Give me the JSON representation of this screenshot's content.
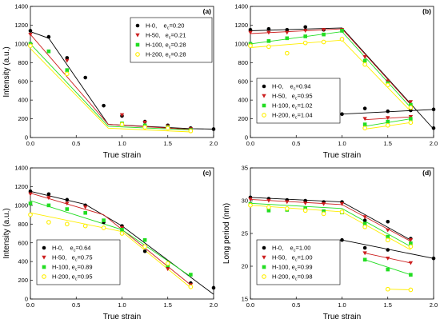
{
  "colors": {
    "H-0": "#000000",
    "H-50": "#cc1f1f",
    "H-100": "#22dd22",
    "H-200": "#ffee00"
  },
  "chart_data": [
    {
      "type": "scatter",
      "panel_label": "(a)",
      "xlabel": "True strain",
      "ylabel": "Intensity (a.u.)",
      "xlim": [
        0.0,
        2.0
      ],
      "ylim": [
        0,
        1400
      ],
      "xticks": [
        "0.0",
        "0.5",
        "1.0",
        "1.5",
        "2.0"
      ],
      "yticks": [
        "0",
        "200",
        "400",
        "600",
        "800",
        "1000",
        "1200",
        "1400"
      ],
      "grid": false,
      "legend_position": "top-right",
      "series": [
        {
          "name": "H-0",
          "legend_label": "H-0,    e",
          "legend_sub": "c",
          "legend_value": "=0.20",
          "marker": "circle",
          "x": [
            0.0,
            0.2,
            0.4,
            0.6,
            0.8,
            1.0,
            1.25,
            1.5,
            1.75,
            2.0
          ],
          "y": [
            1140,
            1075,
            850,
            640,
            340,
            230,
            170,
            130,
            100,
            90
          ],
          "fit": [
            [
              0.0,
              1130
            ],
            [
              0.2,
              1060
            ],
            [
              0.85,
              140
            ],
            [
              1.75,
              95
            ],
            [
              2.0,
              90
            ]
          ]
        },
        {
          "name": "H-50",
          "legend_label": "H-50,   e",
          "legend_sub": "c",
          "legend_value": "=0.21",
          "marker": "triangle-down",
          "x": [
            0.0,
            0.4,
            1.0,
            1.25,
            1.5,
            1.75
          ],
          "y": [
            1100,
            820,
            240,
            160,
            120,
            90
          ],
          "fit": [
            [
              0.0,
              1100
            ],
            [
              0.85,
              140
            ],
            [
              1.75,
              85
            ]
          ]
        },
        {
          "name": "H-100",
          "legend_label": "H-100, e",
          "legend_sub": "c",
          "legend_value": "=0.28",
          "marker": "square",
          "x": [
            0.0,
            0.2,
            0.4,
            1.0,
            1.25,
            1.5,
            1.75
          ],
          "y": [
            1000,
            920,
            720,
            150,
            130,
            110,
            80
          ],
          "fit": [
            [
              0.0,
              1000
            ],
            [
              0.85,
              120
            ],
            [
              1.75,
              80
            ]
          ]
        },
        {
          "name": "H-200",
          "legend_label": "H-200, e",
          "legend_sub": "c",
          "legend_value": "=0.28",
          "marker": "circle-open",
          "x": [
            0.0,
            0.4,
            1.0,
            1.25,
            1.5,
            1.75
          ],
          "y": [
            980,
            680,
            140,
            110,
            100,
            70
          ],
          "fit": [
            [
              0.0,
              950
            ],
            [
              0.85,
              100
            ],
            [
              1.75,
              60
            ]
          ]
        }
      ]
    },
    {
      "type": "scatter",
      "panel_label": "(b)",
      "xlabel": "True strain",
      "ylabel": "",
      "xlim": [
        0.0,
        2.0
      ],
      "ylim": [
        0,
        1400
      ],
      "xticks": [
        "0.0",
        "0.5",
        "1.0",
        "1.5",
        "2.0"
      ],
      "yticks": [
        "0",
        "200",
        "400",
        "600",
        "800",
        "1000",
        "1200",
        "1400"
      ],
      "grid": false,
      "legend_position": "bottom-left",
      "series": [
        {
          "name": "H-0",
          "legend_label": "H-0,    e",
          "legend_sub": "c",
          "legend_value": "=0.94",
          "marker": "circle",
          "x": [
            0.0,
            0.2,
            0.4,
            0.6,
            0.8,
            1.0,
            1.25,
            1.5,
            1.75,
            2.0,
            1.0,
            1.25,
            1.5,
            1.75,
            2.0
          ],
          "y": [
            1150,
            1160,
            1150,
            1180,
            1150,
            1150,
            820,
            590,
            330,
            100,
            250,
            310,
            280,
            290,
            300
          ],
          "fit": [
            [
              0.0,
              1140
            ],
            [
              1.0,
              1170
            ],
            [
              2.0,
              90
            ]
          ],
          "fit2": [
            [
              1.0,
              250
            ],
            [
              2.0,
              300
            ]
          ]
        },
        {
          "name": "H-50",
          "legend_label": "H-50,   e",
          "legend_sub": "c",
          "legend_value": "=0.95",
          "marker": "triangle-down",
          "x": [
            0.0,
            0.2,
            0.4,
            0.6,
            0.8,
            1.0,
            1.25,
            1.5,
            1.75,
            1.25,
            1.5,
            1.75
          ],
          "y": [
            1120,
            1120,
            1120,
            1140,
            1150,
            1150,
            860,
            600,
            380,
            200,
            210,
            220
          ],
          "fit": [
            [
              0.0,
              1110
            ],
            [
              1.0,
              1160
            ],
            [
              1.75,
              350
            ]
          ],
          "fit2": [
            [
              1.25,
              190
            ],
            [
              1.75,
              220
            ]
          ]
        },
        {
          "name": "H-100",
          "legend_label": "H-100, e",
          "legend_sub": "c",
          "legend_value": "=1.02",
          "marker": "square",
          "x": [
            0.0,
            0.2,
            0.4,
            0.6,
            0.8,
            1.0,
            1.25,
            1.5,
            1.75,
            1.25,
            1.5,
            1.75
          ],
          "y": [
            1000,
            1030,
            1060,
            1080,
            1100,
            1140,
            820,
            580,
            350,
            140,
            170,
            200
          ],
          "fit": [
            [
              0.0,
              1000
            ],
            [
              1.0,
              1130
            ],
            [
              1.75,
              320
            ]
          ],
          "fit2": [
            [
              1.25,
              120
            ],
            [
              1.75,
              200
            ]
          ]
        },
        {
          "name": "H-200",
          "legend_label": "H-200, e",
          "legend_sub": "c",
          "legend_value": "=1.04",
          "marker": "circle-open",
          "x": [
            0.0,
            0.2,
            0.4,
            0.6,
            0.8,
            1.0,
            1.25,
            1.5,
            1.75,
            1.25,
            1.5,
            1.75
          ],
          "y": [
            980,
            970,
            900,
            1010,
            1020,
            1050,
            780,
            560,
            320,
            100,
            130,
            160
          ],
          "fit": [
            [
              0.0,
              960
            ],
            [
              1.0,
              1040
            ],
            [
              1.75,
              280
            ]
          ],
          "fit2": [
            [
              1.25,
              90
            ],
            [
              1.75,
              160
            ]
          ]
        }
      ]
    },
    {
      "type": "scatter",
      "panel_label": "(c)",
      "xlabel": "True strain",
      "ylabel": "Intensity (a.u.)",
      "xlim": [
        0.0,
        2.0
      ],
      "ylim": [
        0,
        1400
      ],
      "xticks": [
        "0.0",
        "0.5",
        "1.0",
        "1.5",
        "2.0"
      ],
      "yticks": [
        "0",
        "200",
        "400",
        "600",
        "800",
        "1000",
        "1200",
        "1400"
      ],
      "grid": false,
      "legend_position": "bottom-left",
      "series": [
        {
          "name": "H-0",
          "legend_label": "H-0,    e",
          "legend_sub": "c",
          "legend_value": "=0.64",
          "marker": "circle",
          "x": [
            0.0,
            0.2,
            0.4,
            0.6,
            0.8,
            1.0,
            1.25,
            1.5,
            1.75,
            2.0
          ],
          "y": [
            1150,
            1120,
            1060,
            1000,
            820,
            780,
            510,
            350,
            170,
            120
          ],
          "fit": [
            [
              0.0,
              1150
            ],
            [
              0.6,
              1010
            ],
            [
              1.0,
              780
            ],
            [
              2.0,
              50
            ]
          ]
        },
        {
          "name": "H-50",
          "legend_label": "H-50,   e",
          "legend_sub": "c",
          "legend_value": "=0.75",
          "marker": "triangle-down",
          "x": [
            0.0,
            0.2,
            0.4,
            0.6,
            1.0,
            1.25,
            1.5,
            1.75
          ],
          "y": [
            1120,
            1080,
            1020,
            980,
            760,
            560,
            320,
            150
          ],
          "fit": [
            [
              0.0,
              1130
            ],
            [
              0.8,
              900
            ],
            [
              1.75,
              150
            ]
          ]
        },
        {
          "name": "H-100",
          "legend_label": "H-100, e",
          "legend_sub": "c",
          "legend_value": "=0.89",
          "marker": "square",
          "x": [
            0.0,
            0.2,
            0.4,
            0.6,
            0.8,
            1.0,
            1.25,
            1.5,
            1.75
          ],
          "y": [
            1020,
            1000,
            960,
            920,
            840,
            740,
            630,
            360,
            260
          ],
          "fit": [
            [
              0.0,
              1050
            ],
            [
              1.0,
              740
            ],
            [
              1.75,
              240
            ]
          ]
        },
        {
          "name": "H-200",
          "legend_label": "H-200, e",
          "legend_sub": "c",
          "legend_value": "=0.95",
          "marker": "circle-open",
          "x": [
            0.0,
            0.2,
            0.4,
            0.6,
            0.8,
            1.0,
            1.25,
            1.5,
            1.75
          ],
          "y": [
            900,
            820,
            800,
            780,
            760,
            700,
            560,
            380,
            130
          ],
          "fit": [
            [
              0.0,
              920
            ],
            [
              1.0,
              720
            ],
            [
              1.75,
              120
            ]
          ]
        }
      ]
    },
    {
      "type": "scatter",
      "panel_label": "(d)",
      "xlabel": "True strain",
      "ylabel": "Long period (nm)",
      "xlim": [
        0.0,
        2.0
      ],
      "ylim": [
        15,
        35
      ],
      "xticks": [
        "0.0",
        "0.5",
        "1.0",
        "1.5",
        "2.0"
      ],
      "yticks": [
        "15",
        "20",
        "25",
        "30",
        "35"
      ],
      "grid": false,
      "legend_position": "bottom-left",
      "series": [
        {
          "name": "H-0",
          "legend_label": "H-0,    e",
          "legend_sub": "c",
          "legend_value": "=1.00",
          "marker": "circle",
          "x": [
            0.0,
            0.2,
            0.4,
            0.6,
            0.8,
            1.0,
            1.25,
            1.5,
            1.75,
            1.0,
            1.25,
            1.5,
            2.0
          ],
          "y": [
            30.5,
            30.3,
            30.1,
            30.0,
            29.8,
            29.8,
            27.0,
            26.8,
            24.2,
            24.0,
            22.8,
            22.5,
            21.2
          ],
          "fit": [
            [
              0.0,
              30.5
            ],
            [
              1.0,
              29.8
            ],
            [
              1.75,
              24.0
            ]
          ],
          "fit2": [
            [
              1.0,
              24.0
            ],
            [
              2.0,
              21.2
            ]
          ]
        },
        {
          "name": "H-50",
          "legend_label": "H-50,   e",
          "legend_sub": "c",
          "legend_value": "=1.00",
          "marker": "triangle-down",
          "x": [
            0.0,
            0.2,
            0.4,
            0.6,
            0.8,
            1.0,
            1.25,
            1.5,
            1.75,
            1.25,
            1.5,
            1.75
          ],
          "y": [
            30.2,
            30.0,
            29.8,
            29.6,
            29.5,
            29.5,
            27.5,
            25.5,
            24.0,
            22.0,
            21.2,
            20.5
          ],
          "fit": [
            [
              0.0,
              30.2
            ],
            [
              1.0,
              29.4
            ],
            [
              1.75,
              23.8
            ]
          ],
          "fit2": [
            [
              1.25,
              22.0
            ],
            [
              1.75,
              20.5
            ]
          ]
        },
        {
          "name": "H-100",
          "legend_label": "H-100, e",
          "legend_sub": "c",
          "legend_value": "=0.99",
          "marker": "square",
          "x": [
            0.0,
            0.2,
            0.4,
            0.6,
            0.8,
            1.0,
            1.25,
            1.5,
            1.75,
            1.25,
            1.5,
            1.75
          ],
          "y": [
            29.5,
            28.5,
            28.6,
            28.8,
            28.4,
            28.2,
            26.5,
            24.5,
            23.5,
            21.0,
            19.5,
            18.7
          ],
          "fit": [
            [
              0.0,
              29.6
            ],
            [
              1.0,
              28.8
            ],
            [
              1.75,
              23.0
            ]
          ],
          "fit2": [
            [
              1.25,
              21.0
            ],
            [
              1.75,
              18.7
            ]
          ]
        },
        {
          "name": "H-200",
          "legend_label": "H-200, e",
          "legend_sub": "c",
          "legend_value": "=0.98",
          "marker": "circle-open",
          "x": [
            0.0,
            0.2,
            0.4,
            0.6,
            0.8,
            1.0,
            1.25,
            1.5,
            1.75,
            1.5,
            1.75
          ],
          "y": [
            29.3,
            29.0,
            28.8,
            28.5,
            28.0,
            28.3,
            26.0,
            24.0,
            23.0,
            16.5,
            16.4
          ],
          "fit": [
            [
              0.0,
              29.3
            ],
            [
              1.0,
              28.3
            ],
            [
              1.75,
              22.5
            ]
          ],
          "fit2": [
            [
              1.5,
              16.5
            ],
            [
              1.75,
              16.4
            ]
          ]
        }
      ]
    }
  ]
}
